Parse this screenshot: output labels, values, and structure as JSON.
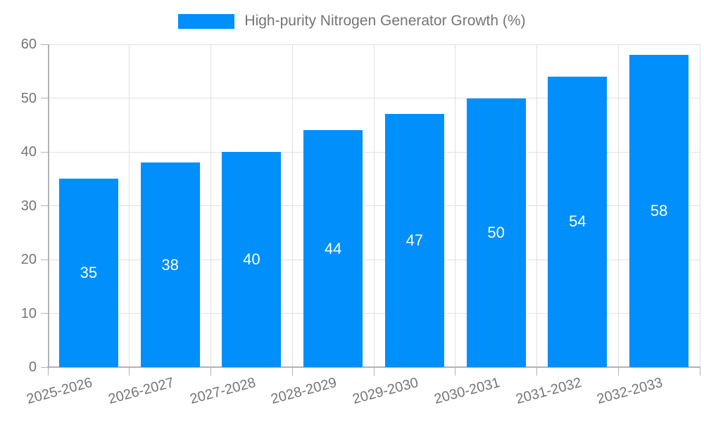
{
  "legend": {
    "label": "High-purity Nitrogen Generator Growth (%)"
  },
  "chart_data": {
    "type": "bar",
    "title": "High-purity Nitrogen Generator Growth (%)",
    "categories": [
      "2025-2026",
      "2026-2027",
      "2027-2028",
      "2028-2029",
      "2029-2030",
      "2030-2031",
      "2031-2032",
      "2032-2033"
    ],
    "series": [
      {
        "name": "High-purity Nitrogen Generator Growth (%)",
        "values": [
          35,
          38,
          40,
          44,
          47,
          50,
          54,
          58
        ]
      }
    ],
    "xlabel": "",
    "ylabel": "",
    "ylim": [
      0,
      60
    ],
    "yticks": [
      0,
      10,
      20,
      30,
      40,
      50,
      60
    ],
    "grid": true,
    "legend_position": "top",
    "bar_value_labels": true,
    "colors": {
      "bar": "#008FFB",
      "grid_line": "#e0e0e0",
      "axis_line": "#b3b3b3",
      "tick_text": "#757575",
      "value_label_text": "#ffffff",
      "background": "#ffffff"
    }
  }
}
